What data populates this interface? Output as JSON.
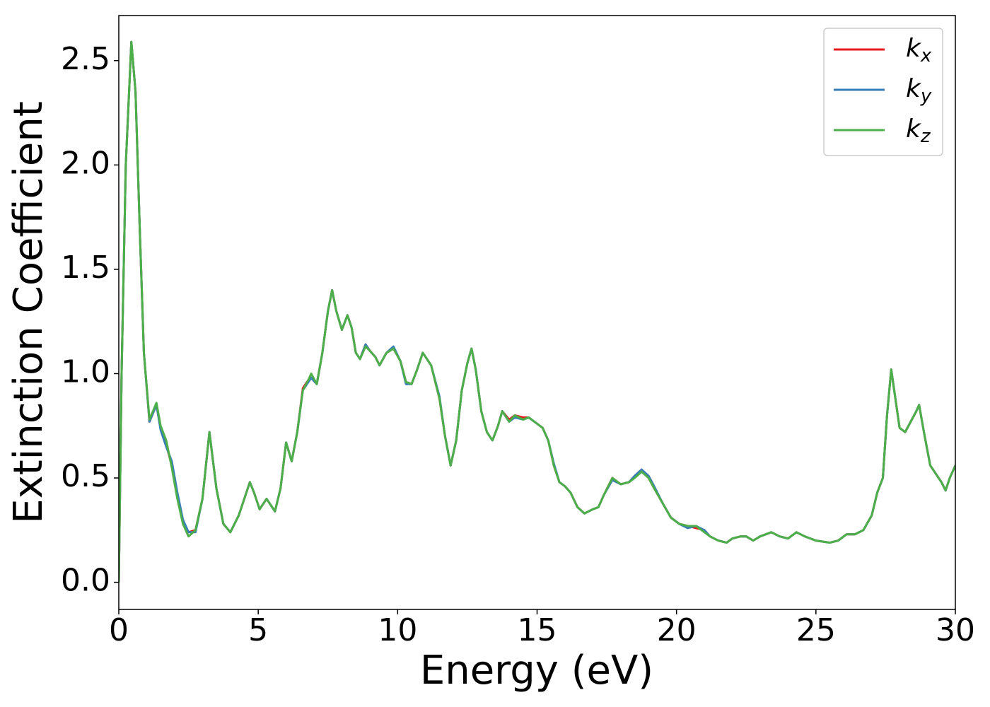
{
  "chart_data": {
    "type": "line",
    "xlabel": "Energy (eV)",
    "ylabel": "Extinction Coefficient",
    "x": [
      0,
      0.1,
      0.25,
      0.45,
      0.6,
      0.75,
      0.9,
      1.1,
      1.35,
      1.5,
      1.7,
      1.9,
      2.1,
      2.3,
      2.5,
      2.75,
      3.0,
      3.25,
      3.5,
      3.75,
      4.0,
      4.3,
      4.5,
      4.7,
      4.85,
      5.05,
      5.3,
      5.6,
      5.8,
      6.0,
      6.2,
      6.4,
      6.6,
      6.8,
      6.9,
      7.1,
      7.3,
      7.5,
      7.65,
      7.8,
      8.0,
      8.2,
      8.35,
      8.5,
      8.65,
      8.85,
      9.0,
      9.2,
      9.35,
      9.6,
      9.85,
      10.1,
      10.3,
      10.5,
      10.7,
      10.9,
      11.2,
      11.5,
      11.7,
      11.9,
      12.1,
      12.3,
      12.5,
      12.65,
      12.8,
      13.0,
      13.2,
      13.4,
      13.6,
      13.75,
      14.0,
      14.2,
      14.5,
      14.7,
      15.0,
      15.2,
      15.4,
      15.6,
      15.8,
      16.0,
      16.2,
      16.45,
      16.7,
      17.0,
      17.2,
      17.4,
      17.7,
      18.0,
      18.3,
      18.5,
      18.75,
      19.0,
      19.2,
      19.5,
      19.8,
      20.1,
      20.4,
      20.7,
      21.0,
      21.2,
      21.5,
      21.8,
      22.0,
      22.3,
      22.5,
      22.75,
      23.0,
      23.4,
      23.7,
      24.0,
      24.3,
      24.6,
      25.0,
      25.5,
      25.8,
      26.1,
      26.4,
      26.7,
      27.0,
      27.2,
      27.4,
      27.55,
      27.7,
      27.85,
      28.0,
      28.2,
      28.4,
      28.6,
      28.7,
      28.9,
      29.1,
      29.3,
      29.5,
      29.65,
      29.8,
      30.0
    ],
    "series": [
      {
        "name": "kx",
        "color": "#e41a1c",
        "values": [
          0,
          1.0,
          2.0,
          2.59,
          2.35,
          1.7,
          1.1,
          0.77,
          0.85,
          0.74,
          0.66,
          0.56,
          0.42,
          0.29,
          0.24,
          0.25,
          0.4,
          0.72,
          0.45,
          0.28,
          0.24,
          0.32,
          0.4,
          0.48,
          0.43,
          0.35,
          0.4,
          0.34,
          0.45,
          0.67,
          0.58,
          0.72,
          0.93,
          0.97,
          0.98,
          0.95,
          1.1,
          1.3,
          1.4,
          1.3,
          1.21,
          1.28,
          1.22,
          1.1,
          1.07,
          1.14,
          1.11,
          1.08,
          1.04,
          1.1,
          1.12,
          1.06,
          0.96,
          0.95,
          1.02,
          1.1,
          1.04,
          0.88,
          0.7,
          0.56,
          0.68,
          0.92,
          1.05,
          1.12,
          1.02,
          0.82,
          0.72,
          0.68,
          0.75,
          0.82,
          0.78,
          0.8,
          0.79,
          0.79,
          0.76,
          0.74,
          0.68,
          0.56,
          0.48,
          0.46,
          0.43,
          0.36,
          0.33,
          0.35,
          0.36,
          0.42,
          0.5,
          0.47,
          0.48,
          0.51,
          0.54,
          0.5,
          0.45,
          0.38,
          0.31,
          0.28,
          0.27,
          0.26,
          0.25,
          0.22,
          0.2,
          0.19,
          0.21,
          0.22,
          0.22,
          0.2,
          0.22,
          0.24,
          0.22,
          0.21,
          0.24,
          0.22,
          0.2,
          0.19,
          0.2,
          0.23,
          0.23,
          0.25,
          0.32,
          0.43,
          0.5,
          0.8,
          1.02,
          0.88,
          0.74,
          0.72,
          0.77,
          0.82,
          0.85,
          0.7,
          0.56,
          0.52,
          0.48,
          0.44,
          0.5,
          0.56
        ]
      },
      {
        "name": "ky",
        "color": "#377eb8",
        "values": [
          0,
          1.0,
          2.0,
          2.59,
          2.35,
          1.7,
          1.1,
          0.77,
          0.85,
          0.73,
          0.65,
          0.58,
          0.43,
          0.3,
          0.24,
          0.24,
          0.4,
          0.72,
          0.45,
          0.28,
          0.24,
          0.32,
          0.4,
          0.48,
          0.43,
          0.35,
          0.4,
          0.34,
          0.45,
          0.67,
          0.58,
          0.72,
          0.92,
          0.96,
          0.98,
          0.95,
          1.1,
          1.3,
          1.4,
          1.3,
          1.21,
          1.28,
          1.22,
          1.1,
          1.07,
          1.14,
          1.11,
          1.08,
          1.04,
          1.1,
          1.13,
          1.06,
          0.95,
          0.95,
          1.02,
          1.1,
          1.04,
          0.89,
          0.7,
          0.56,
          0.68,
          0.92,
          1.05,
          1.12,
          1.02,
          0.82,
          0.72,
          0.68,
          0.75,
          0.82,
          0.77,
          0.79,
          0.78,
          0.79,
          0.76,
          0.74,
          0.68,
          0.57,
          0.48,
          0.46,
          0.43,
          0.36,
          0.33,
          0.35,
          0.36,
          0.42,
          0.49,
          0.47,
          0.48,
          0.51,
          0.54,
          0.51,
          0.46,
          0.38,
          0.31,
          0.28,
          0.26,
          0.27,
          0.25,
          0.22,
          0.2,
          0.19,
          0.21,
          0.22,
          0.22,
          0.2,
          0.22,
          0.24,
          0.22,
          0.21,
          0.24,
          0.22,
          0.2,
          0.19,
          0.2,
          0.23,
          0.23,
          0.25,
          0.32,
          0.43,
          0.5,
          0.8,
          1.02,
          0.88,
          0.74,
          0.72,
          0.77,
          0.82,
          0.85,
          0.7,
          0.56,
          0.52,
          0.48,
          0.44,
          0.5,
          0.56
        ]
      },
      {
        "name": "kz",
        "color": "#4daf4a",
        "values": [
          0,
          1.0,
          2.0,
          2.59,
          2.35,
          1.7,
          1.1,
          0.78,
          0.86,
          0.75,
          0.68,
          0.55,
          0.4,
          0.28,
          0.22,
          0.25,
          0.4,
          0.72,
          0.45,
          0.28,
          0.24,
          0.32,
          0.4,
          0.48,
          0.43,
          0.35,
          0.4,
          0.34,
          0.45,
          0.67,
          0.58,
          0.72,
          0.92,
          0.97,
          1.0,
          0.95,
          1.1,
          1.3,
          1.4,
          1.3,
          1.21,
          1.28,
          1.22,
          1.1,
          1.07,
          1.13,
          1.11,
          1.08,
          1.04,
          1.1,
          1.12,
          1.06,
          0.96,
          0.95,
          1.02,
          1.1,
          1.04,
          0.88,
          0.7,
          0.56,
          0.68,
          0.92,
          1.05,
          1.12,
          1.02,
          0.82,
          0.72,
          0.68,
          0.75,
          0.82,
          0.77,
          0.8,
          0.78,
          0.79,
          0.76,
          0.74,
          0.68,
          0.56,
          0.48,
          0.46,
          0.43,
          0.36,
          0.33,
          0.35,
          0.36,
          0.42,
          0.5,
          0.47,
          0.48,
          0.5,
          0.53,
          0.5,
          0.45,
          0.38,
          0.31,
          0.28,
          0.27,
          0.27,
          0.24,
          0.22,
          0.2,
          0.19,
          0.21,
          0.22,
          0.22,
          0.2,
          0.22,
          0.24,
          0.22,
          0.21,
          0.24,
          0.22,
          0.2,
          0.19,
          0.2,
          0.23,
          0.23,
          0.25,
          0.32,
          0.43,
          0.5,
          0.8,
          1.02,
          0.88,
          0.74,
          0.72,
          0.77,
          0.82,
          0.85,
          0.7,
          0.56,
          0.52,
          0.48,
          0.44,
          0.5,
          0.56
        ]
      }
    ],
    "xlim": [
      0,
      30
    ],
    "xticks": [
      0,
      5,
      10,
      15,
      20,
      25,
      30
    ],
    "ylim": [
      -0.13,
      2.716
    ],
    "yticks": [
      {
        "value": 0,
        "label": "0.0"
      },
      0.5,
      {
        "value": 1,
        "label": "1.0"
      },
      1.5,
      {
        "value": 2,
        "label": "2.0"
      },
      2.5
    ],
    "legend": "upper right",
    "grid": false
  }
}
